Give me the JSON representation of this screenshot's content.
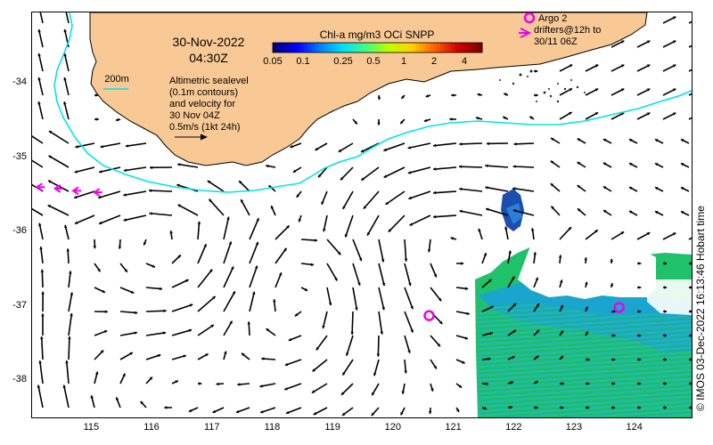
{
  "title": {
    "date": "30-Nov-2022",
    "time": "04:30Z"
  },
  "colorbar": {
    "label": "Chl-a mg/m3 OCi SNPP",
    "ticks": [
      "0.05",
      "0.1",
      "0.25",
      "0.5",
      "1",
      "2",
      "4"
    ],
    "tick_values": [
      0.05,
      0.1,
      0.25,
      0.5,
      1,
      2,
      4
    ],
    "range": [
      0.05,
      6
    ],
    "scale": "log",
    "colors": [
      "#00007f",
      "#0000ff",
      "#0080ff",
      "#00e0ff",
      "#40ff80",
      "#c0ff00",
      "#ffd000",
      "#ff6000",
      "#d00000",
      "#800000"
    ]
  },
  "legend": {
    "contour_label": "200m",
    "description": [
      "Altimetric sealevel",
      "(0.1m contours)",
      "and velocity for",
      "30 Nov 04Z",
      "0.5m/s (1kt 24h)"
    ],
    "argo_label": "Argo 2",
    "drifter_label": [
      "drifters@12h to",
      "30/11 06Z"
    ]
  },
  "axes": {
    "x_ticks": [
      "115",
      "116",
      "117",
      "118",
      "119",
      "120",
      "121",
      "122",
      "123",
      "124"
    ],
    "x_values": [
      115,
      116,
      117,
      118,
      119,
      120,
      121,
      122,
      123,
      124
    ],
    "y_ticks": [
      "-34",
      "-35",
      "-36",
      "-37",
      "-38"
    ],
    "y_values": [
      -34,
      -35,
      -36,
      -37,
      -38
    ],
    "lon_range": [
      114.02,
      124.95
    ],
    "lat_range": [
      -38.5,
      -33.05
    ]
  },
  "argo_floats": [
    {
      "lon": 120.6,
      "lat": -37.13
    },
    {
      "lon": 123.75,
      "lat": -37.02
    }
  ],
  "drifter_track": [
    {
      "lon": 114.1,
      "lat": -35.4
    },
    {
      "lon": 114.4,
      "lat": -35.42
    },
    {
      "lon": 114.7,
      "lat": -35.45
    },
    {
      "lon": 115.05,
      "lat": -35.47
    }
  ],
  "side_text": "© IMOS 03-Dec-2022 16:13:46 Hobart time",
  "colors": {
    "land": "#f9c995",
    "contour_200m": "#00e5e5",
    "marker": "#ee00ee",
    "chl_water": "#1fc46a",
    "chl_offshore": "#1a9ae0"
  }
}
